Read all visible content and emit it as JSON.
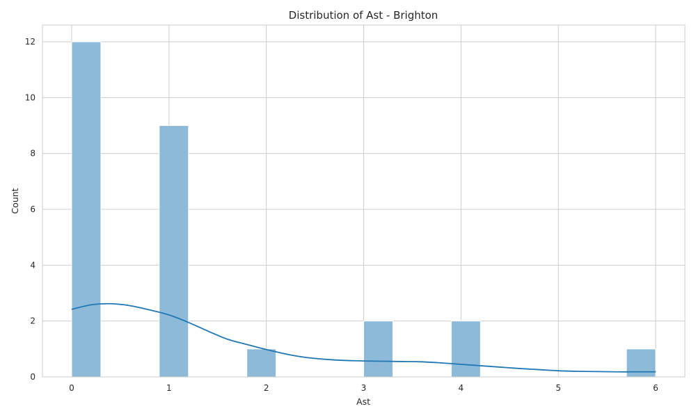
{
  "chart_data": {
    "type": "bar",
    "title": "Distribution of Ast - Brighton",
    "xlabel": "Ast",
    "ylabel": "Count",
    "xlim": [
      -0.3,
      6.3
    ],
    "ylim": [
      0,
      12.6
    ],
    "xticks": [
      "0",
      "1",
      "2",
      "3",
      "4",
      "5",
      "6"
    ],
    "yticks": [
      "0",
      "2",
      "4",
      "6",
      "8",
      "10",
      "12"
    ],
    "grid": true,
    "bins": [
      {
        "start": 0.0,
        "end": 0.3,
        "count": 12
      },
      {
        "start": 0.3,
        "end": 0.6,
        "count": 0
      },
      {
        "start": 0.6,
        "end": 0.9,
        "count": 0
      },
      {
        "start": 0.9,
        "end": 1.2,
        "count": 9
      },
      {
        "start": 1.2,
        "end": 1.5,
        "count": 0
      },
      {
        "start": 1.5,
        "end": 1.8,
        "count": 0
      },
      {
        "start": 1.8,
        "end": 2.1,
        "count": 1
      },
      {
        "start": 2.1,
        "end": 2.4,
        "count": 0
      },
      {
        "start": 2.4,
        "end": 2.7,
        "count": 0
      },
      {
        "start": 2.7,
        "end": 3.0,
        "count": 0
      },
      {
        "start": 3.0,
        "end": 3.3,
        "count": 2
      },
      {
        "start": 3.3,
        "end": 3.6,
        "count": 0
      },
      {
        "start": 3.6,
        "end": 3.9,
        "count": 0
      },
      {
        "start": 3.9,
        "end": 4.2,
        "count": 2
      },
      {
        "start": 4.2,
        "end": 4.5,
        "count": 0
      },
      {
        "start": 4.5,
        "end": 4.8,
        "count": 0
      },
      {
        "start": 4.8,
        "end": 5.1,
        "count": 0
      },
      {
        "start": 5.1,
        "end": 5.4,
        "count": 0
      },
      {
        "start": 5.4,
        "end": 5.7,
        "count": 0
      },
      {
        "start": 5.7,
        "end": 6.0,
        "count": 1
      }
    ],
    "kde": {
      "x": [
        0,
        0.2,
        0.4,
        0.6,
        0.8,
        1.0,
        1.2,
        1.4,
        1.6,
        1.8,
        2.0,
        2.2,
        2.4,
        2.6,
        2.8,
        3.0,
        3.2,
        3.4,
        3.6,
        3.8,
        4.0,
        4.2,
        4.4,
        4.6,
        4.8,
        5.0,
        5.2,
        5.4,
        5.6,
        5.8,
        6.0
      ],
      "y": [
        2.42,
        2.58,
        2.62,
        2.55,
        2.4,
        2.22,
        1.95,
        1.64,
        1.35,
        1.16,
        0.98,
        0.82,
        0.7,
        0.63,
        0.59,
        0.57,
        0.56,
        0.55,
        0.54,
        0.5,
        0.45,
        0.4,
        0.35,
        0.3,
        0.26,
        0.22,
        0.2,
        0.19,
        0.18,
        0.18,
        0.18
      ]
    },
    "colors": {
      "bar_fill": "#8ebad9",
      "bar_edge": "#ffffff",
      "kde_line": "#1f77b4",
      "grid": "#cccccc",
      "spine": "#cccccc",
      "text": "#262626"
    }
  }
}
